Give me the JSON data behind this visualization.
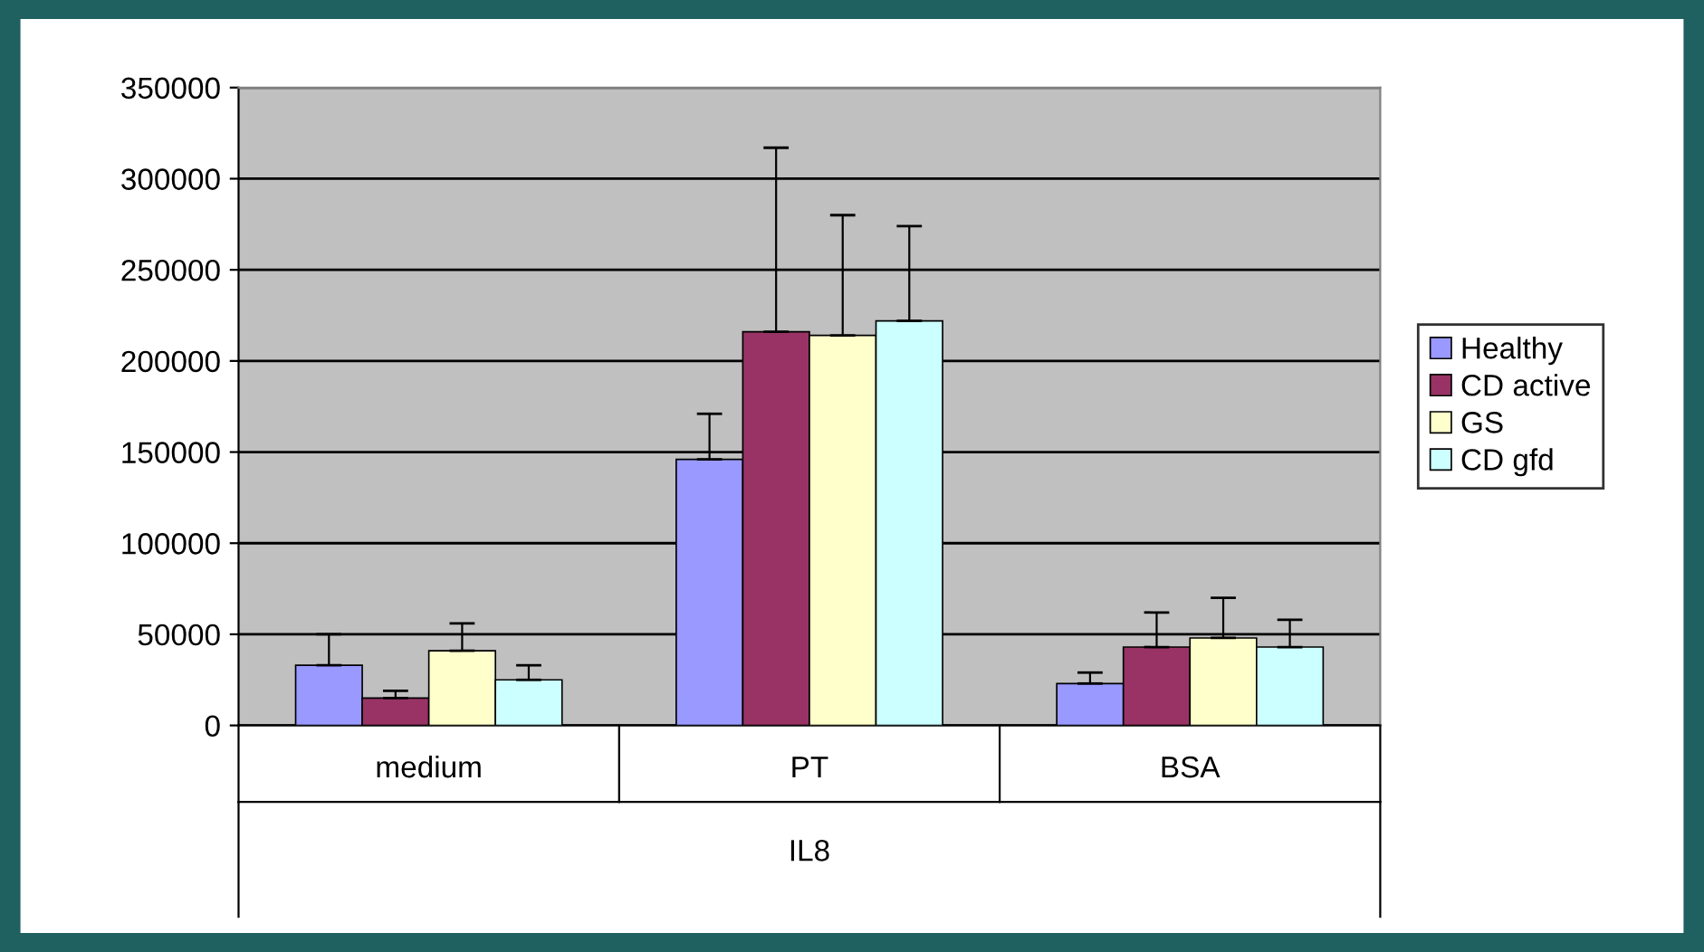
{
  "chart_data": {
    "type": "bar",
    "categories": [
      "medium",
      "PT",
      "BSA"
    ],
    "xlabel": "IL8",
    "series": [
      {
        "name": "Healthy",
        "color": "#9999ff",
        "values": [
          33000,
          146000,
          23000
        ],
        "errors": [
          [
            33000,
            50000
          ],
          [
            146000,
            171000
          ],
          [
            23000,
            29000
          ]
        ]
      },
      {
        "name": "CD active",
        "color": "#993366",
        "values": [
          15000,
          216000,
          43000
        ],
        "errors": [
          [
            15000,
            19000
          ],
          [
            216000,
            317000
          ],
          [
            43000,
            62000
          ]
        ]
      },
      {
        "name": "GS",
        "color": "#ffffcc",
        "values": [
          41000,
          214000,
          48000
        ],
        "errors": [
          [
            41000,
            56000
          ],
          [
            214000,
            280000
          ],
          [
            48000,
            70000
          ]
        ]
      },
      {
        "name": "CD gfd",
        "color": "#ccffff",
        "values": [
          25000,
          222000,
          43000
        ],
        "errors": [
          [
            25000,
            33000
          ],
          [
            222000,
            274000
          ],
          [
            43000,
            58000
          ]
        ]
      }
    ],
    "ylim": [
      0,
      350000
    ],
    "yticks": [
      0,
      50000,
      100000,
      150000,
      200000,
      250000,
      300000,
      350000
    ],
    "grid": "y",
    "legend": "right"
  }
}
